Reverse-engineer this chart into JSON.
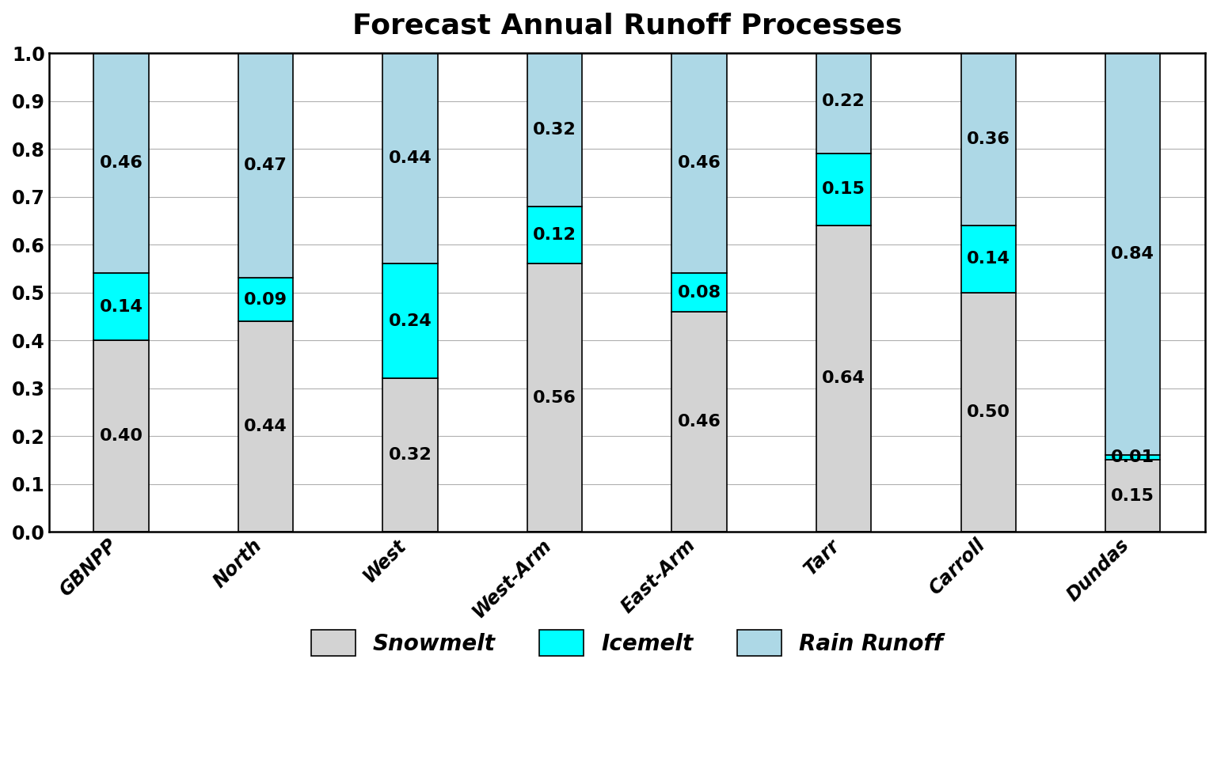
{
  "title": "Forecast Annual Runoff Processes",
  "categories": [
    "GBNPP",
    "North",
    "West",
    "West-Arm",
    "East-Arm",
    "Tarr",
    "Carroll",
    "Dundas"
  ],
  "snowmelt": [
    0.4,
    0.44,
    0.32,
    0.56,
    0.46,
    0.64,
    0.5,
    0.15
  ],
  "icemelt": [
    0.14,
    0.09,
    0.24,
    0.12,
    0.08,
    0.15,
    0.14,
    0.01
  ],
  "rain": [
    0.46,
    0.47,
    0.44,
    0.32,
    0.46,
    0.22,
    0.36,
    0.84
  ],
  "snowmelt_color": "#d3d3d3",
  "icemelt_color": "#00ffff",
  "rain_color": "#add8e6",
  "bar_edge_color": "#000000",
  "bar_width": 0.38,
  "ylim": [
    0.0,
    1.0
  ],
  "yticks": [
    0.0,
    0.1,
    0.2,
    0.3,
    0.4,
    0.5,
    0.6,
    0.7,
    0.8,
    0.9,
    1.0
  ],
  "legend_labels": [
    "Snowmelt",
    "Icemelt",
    "Rain Runoff"
  ],
  "title_fontsize": 26,
  "tick_fontsize": 17,
  "legend_fontsize": 20,
  "value_fontsize": 16,
  "figsize": [
    15.37,
    9.77
  ],
  "dpi": 100,
  "background_color": "#ffffff",
  "plot_bg_color": "#ffffff"
}
